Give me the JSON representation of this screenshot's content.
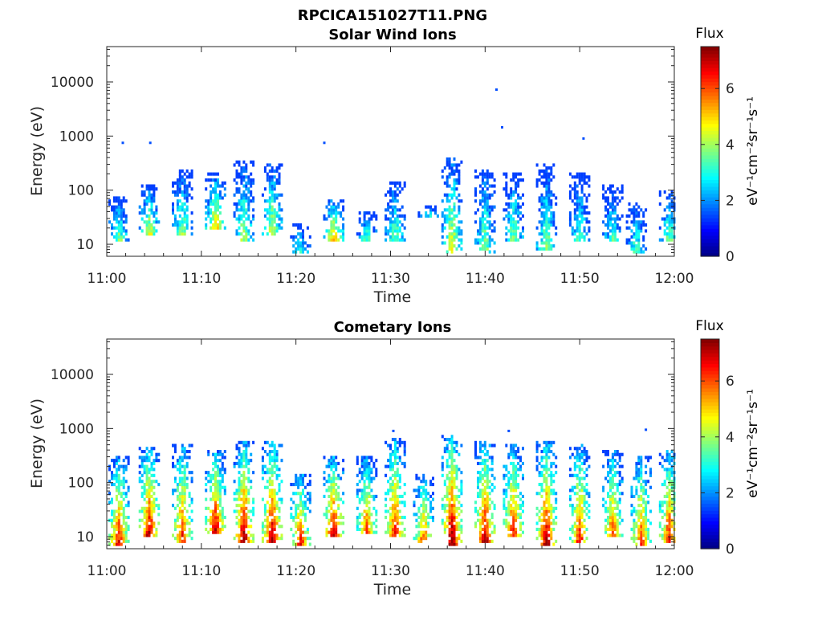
{
  "figure_title": "RPCICA151027T11.PNG",
  "chart_data": [
    {
      "type": "heatmap",
      "title": "Solar Wind Ions",
      "xlabel": "Time",
      "ylabel": "Energy (eV)",
      "x_ticks": [
        "11:00",
        "11:10",
        "11:20",
        "11:30",
        "11:40",
        "11:50",
        "12:00"
      ],
      "xlim": [
        "11:00",
        "12:00"
      ],
      "y_scale": "log",
      "ylim": [
        6,
        45000
      ],
      "y_ticks": [
        10,
        100,
        1000,
        10000
      ],
      "y_tick_labels": [
        "10",
        "100",
        "1000",
        "10000"
      ],
      "colorbar": {
        "title": "Flux",
        "unit": "eV⁻¹cm⁻²sr⁻¹s⁻¹",
        "range": [
          0,
          7.5
        ],
        "ticks": [
          "0",
          "2",
          "4",
          "6"
        ],
        "colormap": "jet"
      },
      "grid": false,
      "bursts": [
        {
          "t": 1.3,
          "lo": 12,
          "hi": 80,
          "peak": 3.4
        },
        {
          "t": 4.5,
          "lo": 15,
          "hi": 120,
          "peak": 4.2
        },
        {
          "t": 8.0,
          "lo": 15,
          "hi": 230,
          "peak": 3.5
        },
        {
          "t": 11.5,
          "lo": 18,
          "hi": 210,
          "peak": 4.6
        },
        {
          "t": 14.5,
          "lo": 12,
          "hi": 350,
          "peak": 3.8
        },
        {
          "t": 17.5,
          "lo": 15,
          "hi": 320,
          "peak": 4.0
        },
        {
          "t": 20.5,
          "lo": 7,
          "hi": 25,
          "peak": 3.0
        },
        {
          "t": 24.0,
          "lo": 12,
          "hi": 70,
          "peak": 4.8
        },
        {
          "t": 27.5,
          "lo": 12,
          "hi": 40,
          "peak": 3.2
        },
        {
          "t": 30.5,
          "lo": 12,
          "hi": 150,
          "peak": 3.3
        },
        {
          "t": 34.0,
          "lo": 30,
          "hi": 50,
          "peak": 3.0
        },
        {
          "t": 36.5,
          "lo": 7,
          "hi": 400,
          "peak": 4.3
        },
        {
          "t": 40.0,
          "lo": 7,
          "hi": 250,
          "peak": 3.6
        },
        {
          "t": 43.0,
          "lo": 12,
          "hi": 200,
          "peak": 3.4
        },
        {
          "t": 46.5,
          "lo": 8,
          "hi": 300,
          "peak": 3.5
        },
        {
          "t": 50.0,
          "lo": 12,
          "hi": 200,
          "peak": 3.0
        },
        {
          "t": 53.5,
          "lo": 12,
          "hi": 130,
          "peak": 3.0
        },
        {
          "t": 56.0,
          "lo": 7,
          "hi": 60,
          "peak": 3.2
        },
        {
          "t": 59.5,
          "lo": 12,
          "hi": 100,
          "peak": 3.4
        }
      ],
      "points": [
        {
          "t": 1.7,
          "e": 750
        },
        {
          "t": 4.6,
          "e": 750
        },
        {
          "t": 23.0,
          "e": 750
        },
        {
          "t": 41.2,
          "e": 7200
        },
        {
          "t": 41.8,
          "e": 1450
        },
        {
          "t": 50.4,
          "e": 900
        }
      ]
    },
    {
      "type": "heatmap",
      "title": "Cometary Ions",
      "xlabel": "Time",
      "ylabel": "Energy (eV)",
      "x_ticks": [
        "11:00",
        "11:10",
        "11:20",
        "11:30",
        "11:40",
        "11:50",
        "12:00"
      ],
      "xlim": [
        "11:00",
        "12:00"
      ],
      "y_scale": "log",
      "ylim": [
        6,
        45000
      ],
      "y_ticks": [
        10,
        100,
        1000,
        10000
      ],
      "y_tick_labels": [
        "10",
        "100",
        "1000",
        "10000"
      ],
      "colorbar": {
        "title": "Flux",
        "unit": "eV⁻¹cm⁻²sr⁻¹s⁻¹",
        "range": [
          0,
          7.5
        ],
        "ticks": [
          "0",
          "2",
          "4",
          "6"
        ],
        "colormap": "jet"
      },
      "grid": false,
      "bursts": [
        {
          "t": 1.3,
          "lo": 7,
          "hi": 300,
          "peak": 6.2
        },
        {
          "t": 4.5,
          "lo": 10,
          "hi": 450,
          "peak": 6.6
        },
        {
          "t": 8.0,
          "lo": 8,
          "hi": 500,
          "peak": 6.0
        },
        {
          "t": 11.5,
          "lo": 12,
          "hi": 400,
          "peak": 6.5
        },
        {
          "t": 14.5,
          "lo": 8,
          "hi": 600,
          "peak": 6.8
        },
        {
          "t": 17.5,
          "lo": 8,
          "hi": 600,
          "peak": 6.7
        },
        {
          "t": 20.5,
          "lo": 7,
          "hi": 150,
          "peak": 6.0
        },
        {
          "t": 24.0,
          "lo": 10,
          "hi": 300,
          "peak": 6.6
        },
        {
          "t": 27.5,
          "lo": 12,
          "hi": 300,
          "peak": 5.6
        },
        {
          "t": 30.5,
          "lo": 10,
          "hi": 700,
          "peak": 6.0
        },
        {
          "t": 33.5,
          "lo": 8,
          "hi": 150,
          "peak": 5.5
        },
        {
          "t": 36.5,
          "lo": 7,
          "hi": 800,
          "peak": 7.0
        },
        {
          "t": 40.0,
          "lo": 8,
          "hi": 600,
          "peak": 6.6
        },
        {
          "t": 43.0,
          "lo": 10,
          "hi": 500,
          "peak": 6.1
        },
        {
          "t": 46.5,
          "lo": 7,
          "hi": 600,
          "peak": 6.7
        },
        {
          "t": 50.0,
          "lo": 8,
          "hi": 500,
          "peak": 6.0
        },
        {
          "t": 53.5,
          "lo": 10,
          "hi": 400,
          "peak": 5.6
        },
        {
          "t": 56.5,
          "lo": 7,
          "hi": 300,
          "peak": 5.8
        },
        {
          "t": 59.5,
          "lo": 8,
          "hi": 400,
          "peak": 6.1
        }
      ],
      "points": [
        {
          "t": 30.3,
          "e": 900
        },
        {
          "t": 42.5,
          "e": 900
        },
        {
          "t": 57.0,
          "e": 950
        }
      ]
    }
  ]
}
